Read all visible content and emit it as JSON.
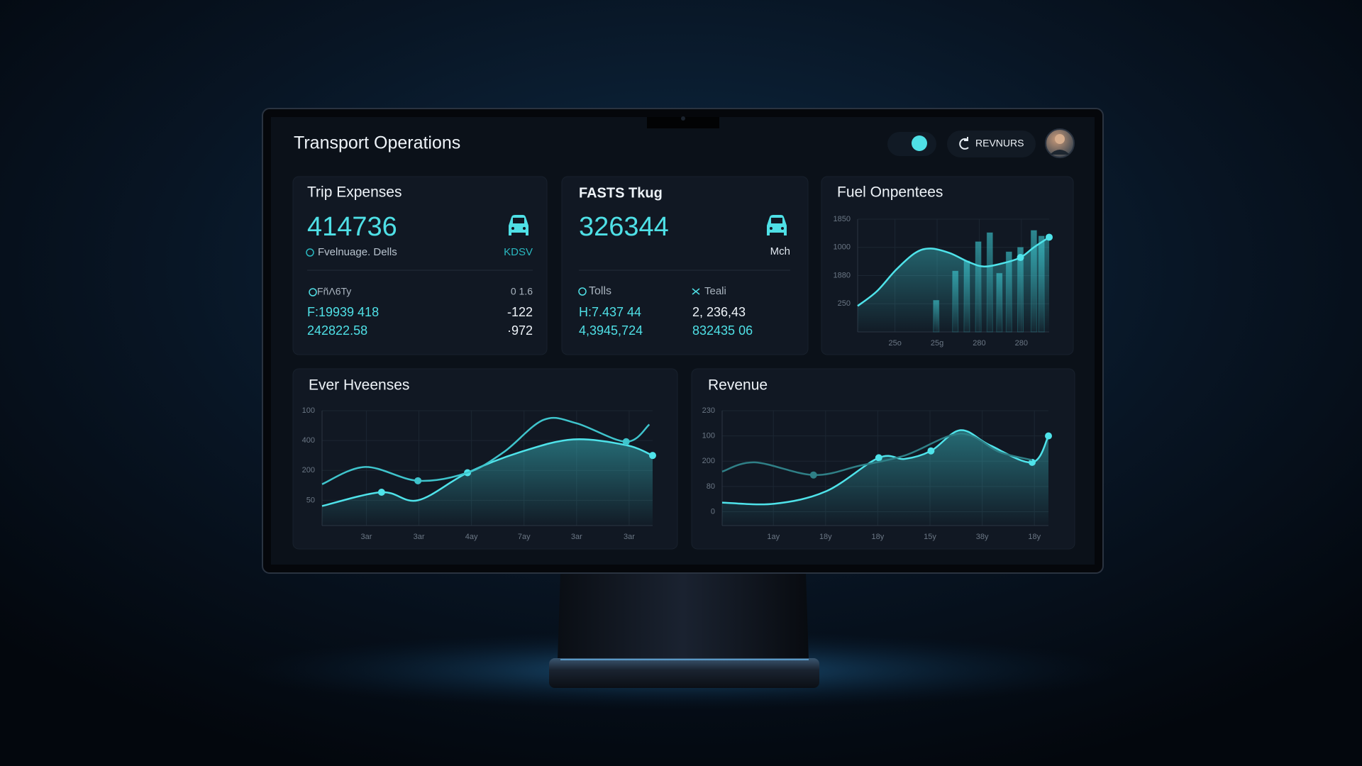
{
  "header": {
    "title": "Transport Operations",
    "button": "REVNURS"
  },
  "cards": [
    {
      "title": "Trip Expenses",
      "value": "414736",
      "subtitle": "Fvelnuage. Dells",
      "unit": "KDSV",
      "labels": [
        "FñΛ6Ty",
        "0 1.6"
      ],
      "rows": [
        [
          "F:19939 418",
          "-122"
        ],
        [
          "242822.58",
          "·972"
        ]
      ]
    },
    {
      "title": "FASTS Tkug",
      "value": "326344",
      "unit": "Mch",
      "labels": [
        "Tolls",
        "Teali"
      ],
      "rows": [
        [
          "H:7.437 44",
          "2, 236,43"
        ],
        [
          "4,3945,724",
          "832435 06"
        ]
      ]
    }
  ],
  "fuel_chart": {
    "type": "line",
    "title": "Fuel Onpentees",
    "xlim": [
      0,
      100
    ],
    "ylim": [
      0,
      100
    ],
    "x_labels": [
      "25o",
      "25g",
      "280",
      "280"
    ],
    "y_labels": [
      "1850",
      "1000",
      "1880",
      "250"
    ],
    "grid": true,
    "bars": {
      "color": "#2fb7bf",
      "x": [
        41,
        51,
        57,
        63,
        69,
        74,
        79,
        85,
        92,
        96
      ],
      "values": [
        28,
        54,
        63,
        80,
        88,
        52,
        71,
        75,
        90,
        85
      ]
    },
    "series": [
      {
        "color": "#4fe3ea",
        "fill": true,
        "x": [
          0,
          10,
          20,
          30,
          38,
          48,
          58,
          66,
          76,
          85,
          92,
          100
        ],
        "values": [
          23,
          36,
          55,
          70,
          74,
          70,
          62,
          58,
          61,
          66,
          75,
          84
        ],
        "markers": [
          9,
          11
        ]
      }
    ]
  },
  "expense_chart": {
    "type": "line",
    "title": "Ever Hveenses",
    "xlim": [
      0,
      100
    ],
    "ylim": [
      0,
      100
    ],
    "x_labels": [
      "3ar",
      "3ar",
      "4ay",
      "7ay",
      "3ar",
      "3ar"
    ],
    "y_labels": [
      "100",
      "400",
      "200",
      "50"
    ],
    "grid": true,
    "series": [
      {
        "color": "#4fe3ea",
        "fill": true,
        "x": [
          0,
          18,
          29,
          44,
          60,
          76,
          92,
          100
        ],
        "values": [
          17,
          29,
          22,
          46,
          64,
          75,
          70,
          61
        ],
        "markers": [
          1,
          3,
          7
        ]
      },
      {
        "color": "#3fc4cc",
        "fill": false,
        "x": [
          0,
          13,
          29,
          44,
          55,
          67,
          77,
          92,
          99
        ],
        "values": [
          36,
          51,
          39,
          46,
          64,
          92,
          89,
          73,
          88
        ],
        "markers": [
          2,
          7
        ]
      }
    ]
  },
  "revenue_chart": {
    "type": "line",
    "title": "Revenue",
    "xlim": [
      0,
      100
    ],
    "ylim": [
      0,
      100
    ],
    "x_labels": [
      "1ay",
      "18y",
      "18y",
      "15y",
      "38y",
      "18y"
    ],
    "y_labels": [
      "230",
      "100",
      "200",
      "80",
      "0"
    ],
    "grid": true,
    "series": [
      {
        "color": "#4fe3ea",
        "fill": true,
        "x": [
          0,
          16,
          32,
          48,
          56,
          64,
          73,
          82,
          95,
          100
        ],
        "values": [
          20,
          19,
          30,
          59,
          58,
          65,
          83,
          70,
          55,
          78
        ],
        "markers": [
          3,
          5,
          8,
          9
        ]
      },
      {
        "color": "#2f7f86",
        "fill": false,
        "x": [
          0,
          10,
          28,
          42,
          56,
          73,
          85,
          95
        ],
        "values": [
          47,
          55,
          44,
          52,
          61,
          80,
          64,
          57
        ],
        "markers": [
          2
        ]
      }
    ]
  }
}
